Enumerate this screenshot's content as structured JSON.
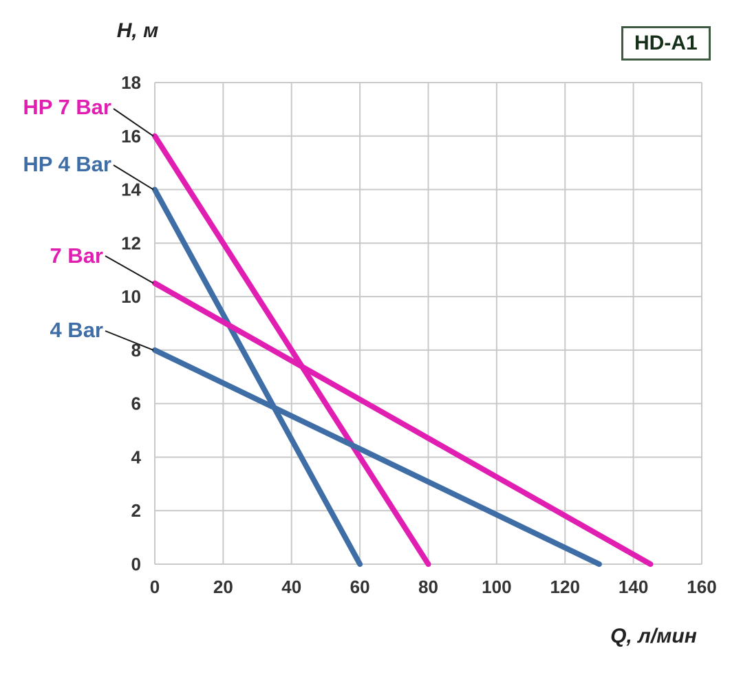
{
  "title_box": {
    "label": "HD-A1"
  },
  "chart_data": {
    "type": "line",
    "title": "HD-A1",
    "xlabel": "Q, л/мин",
    "ylabel": "H, м",
    "xlim": [
      0,
      160
    ],
    "ylim": [
      0,
      18
    ],
    "x_ticks": [
      0,
      20,
      40,
      60,
      80,
      100,
      120,
      140,
      160
    ],
    "y_ticks": [
      0,
      2,
      4,
      6,
      8,
      10,
      12,
      14,
      16,
      18
    ],
    "grid": true,
    "legend_position": "left-labels",
    "colors": {
      "magenta": "#e01fb2",
      "blue": "#3f6ea6",
      "grid": "#c9c9c9",
      "tick_text": "#333333",
      "leader": "#1a1a1a"
    },
    "series": [
      {
        "name": "HP 7 Bar",
        "color": "#e01fb2",
        "points": [
          [
            0,
            16
          ],
          [
            80,
            0
          ]
        ]
      },
      {
        "name": "HP 4 Bar",
        "color": "#3f6ea6",
        "points": [
          [
            0,
            14
          ],
          [
            60,
            0
          ]
        ]
      },
      {
        "name": "7 Bar",
        "color": "#e01fb2",
        "points": [
          [
            0,
            10.5
          ],
          [
            145,
            0
          ]
        ]
      },
      {
        "name": "4 Bar",
        "color": "#3f6ea6",
        "points": [
          [
            0,
            8
          ],
          [
            130,
            0
          ]
        ]
      }
    ]
  }
}
